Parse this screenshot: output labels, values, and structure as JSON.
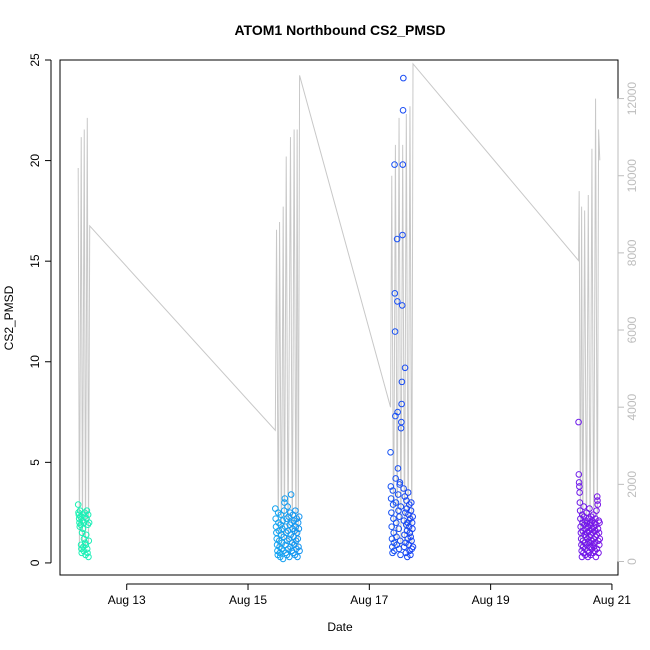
{
  "chart_data": {
    "type": "scatter",
    "title": "ATOM1 Northbound CS2_PMSD",
    "xlabel": "Date",
    "ylabel": "CS2_PMSD",
    "x_axis": {
      "ticks": [
        {
          "day": 13,
          "label": "Aug 13"
        },
        {
          "day": 15,
          "label": "Aug 15"
        },
        {
          "day": 17,
          "label": "Aug 17"
        },
        {
          "day": 19,
          "label": "Aug 19"
        },
        {
          "day": 21,
          "label": "Aug 21"
        }
      ],
      "range_days": [
        11.9,
        21.1
      ]
    },
    "y_axis_left": {
      "ticks": [
        0,
        5,
        10,
        15,
        20,
        25
      ],
      "ylim": [
        -0.6,
        25
      ]
    },
    "y_axis_right": {
      "ticks": [
        0,
        2000,
        4000,
        6000,
        8000,
        10000,
        12000
      ],
      "ylim": [
        -350,
        13000
      ],
      "color": "#bdbdbd"
    },
    "grid": false,
    "legend": "none",
    "series": [
      {
        "type": "scatter",
        "axis": "left",
        "marker": "open-circle",
        "color_gradient": [
          "#1df2b4",
          "#14b6f0",
          "#1a3cf5",
          "#7a16e8"
        ],
        "clusters": [
          {
            "x_start": 12.2,
            "x_end": 12.38,
            "points": [
              2.9,
              2.5,
              2.4,
              2.2,
              2.0,
              1.8,
              2.6,
              2.3,
              1.9,
              0.9,
              0.7,
              0.5,
              1.5,
              2.1,
              2.4,
              1.7,
              0.8,
              0.6,
              1.2,
              2.0,
              2.5,
              2.3,
              1.0,
              0.4,
              0.9,
              1.4,
              2.2,
              2.6,
              0.7,
              0.5,
              1.9,
              2.4,
              0.3,
              1.1,
              2.0
            ]
          },
          {
            "x_start": 15.45,
            "x_end": 15.85,
            "points": [
              2.7,
              2.2,
              1.8,
              1.5,
              1.2,
              0.9,
              0.6,
              0.4,
              2.5,
              2.0,
              1.6,
              1.1,
              0.8,
              0.5,
              0.3,
              1.9,
              2.4,
              1.4,
              0.7,
              1.0,
              1.7,
              2.1,
              0.2,
              0.6,
              1.3,
              2.6,
              3.0,
              3.2,
              1.8,
              0.9,
              0.5,
              1.5,
              2.2,
              0.4,
              1.1,
              2.8,
              1.6,
              0.7,
              2.3,
              1.2,
              0.3,
              1.9,
              2.5,
              0.8,
              1.4,
              3.4,
              2.0,
              0.6,
              1.0,
              1.7,
              2.4,
              0.5,
              1.3,
              2.1,
              0.9,
              1.6,
              0.4,
              2.6,
              1.8,
              1.1,
              0.7,
              2.2,
              1.5,
              0.3,
              1.2,
              2.0,
              0.8,
              1.7,
              2.3,
              0.6
            ]
          },
          {
            "x_start": 17.35,
            "x_end": 17.72,
            "points": [
              5.5,
              3.8,
              3.2,
              2.5,
              1.8,
              1.2,
              0.8,
              0.5,
              3.6,
              2.9,
              2.2,
              1.5,
              1.0,
              0.6,
              19.8,
              13.4,
              11.5,
              7.3,
              4.2,
              3.0,
              2.0,
              1.3,
              0.9,
              16.1,
              13.0,
              7.5,
              4.7,
              3.4,
              2.6,
              1.7,
              0.7,
              2.3,
              3.9,
              4.0,
              1.1,
              0.4,
              2.8,
              6.7,
              7.0,
              7.9,
              9.0,
              12.8,
              16.3,
              19.8,
              22.5,
              24.1,
              3.7,
              2.1,
              0.8,
              1.4,
              3.3,
              9.7,
              2.5,
              1.0,
              0.5,
              1.9,
              3.1,
              2.7,
              1.6,
              0.3,
              2.0,
              1.2,
              3.5,
              2.4,
              0.9,
              1.8,
              2.9,
              0.6,
              1.5,
              2.2,
              0.4,
              1.3,
              2.6,
              3.0,
              1.1,
              0.7,
              2.0,
              1.7,
              2.3,
              0.8
            ]
          },
          {
            "x_start": 20.45,
            "x_end": 20.8,
            "points": [
              7.0,
              4.4,
              4.0,
              3.8,
              3.5,
              3.0,
              2.6,
              2.2,
              1.8,
              1.5,
              1.2,
              0.9,
              0.6,
              0.3,
              2.4,
              2.0,
              1.6,
              1.1,
              0.8,
              0.5,
              2.8,
              2.3,
              1.9,
              1.4,
              1.0,
              0.7,
              0.4,
              2.1,
              1.7,
              1.3,
              0.9,
              2.5,
              2.0,
              1.5,
              1.2,
              0.6,
              0.3,
              1.8,
              2.2,
              1.0,
              0.5,
              1.6,
              2.7,
              1.3,
              0.8,
              2.0,
              1.4,
              0.4,
              1.9,
              2.3,
              1.1,
              0.7,
              1.7,
              2.1,
              0.9,
              1.5,
              0.5,
              2.4,
              1.2,
              0.8,
              1.8,
              2.0,
              1.0,
              0.6,
              1.6,
              2.2,
              1.3,
              0.3,
              1.9,
              2.6,
              1.4,
              0.7,
              3.3,
              3.1,
              2.9,
              1.7,
              1.1,
              0.5,
              2.1,
              1.5,
              0.9,
              2.0,
              1.2
            ]
          }
        ]
      },
      {
        "type": "line",
        "axis": "right",
        "color": "#c8c8c8",
        "points": [
          [
            12.2,
            10200
          ],
          [
            12.22,
            300
          ],
          [
            12.25,
            11000
          ],
          [
            12.27,
            400
          ],
          [
            12.3,
            11200
          ],
          [
            12.32,
            300
          ],
          [
            12.35,
            11500
          ],
          [
            12.37,
            400
          ],
          [
            12.39,
            8700
          ],
          [
            15.45,
            3400
          ],
          [
            15.47,
            8600
          ],
          [
            15.5,
            400
          ],
          [
            15.52,
            8800
          ],
          [
            15.55,
            300
          ],
          [
            15.58,
            9200
          ],
          [
            15.6,
            400
          ],
          [
            15.63,
            10500
          ],
          [
            15.66,
            300
          ],
          [
            15.7,
            11000
          ],
          [
            15.73,
            400
          ],
          [
            15.76,
            11200
          ],
          [
            15.79,
            300
          ],
          [
            15.81,
            11200
          ],
          [
            15.83,
            400
          ],
          [
            15.85,
            12600
          ],
          [
            17.35,
            4000
          ],
          [
            17.37,
            10000
          ],
          [
            17.4,
            300
          ],
          [
            17.43,
            10800
          ],
          [
            17.46,
            400
          ],
          [
            17.49,
            11500
          ],
          [
            17.52,
            300
          ],
          [
            17.55,
            10800
          ],
          [
            17.58,
            400
          ],
          [
            17.61,
            11600
          ],
          [
            17.64,
            300
          ],
          [
            17.67,
            11800
          ],
          [
            17.7,
            400
          ],
          [
            17.72,
            12900
          ],
          [
            20.45,
            7800
          ],
          [
            20.46,
            9600
          ],
          [
            20.48,
            300
          ],
          [
            20.5,
            9200
          ],
          [
            20.52,
            400
          ],
          [
            20.55,
            9100
          ],
          [
            20.58,
            300
          ],
          [
            20.61,
            9500
          ],
          [
            20.64,
            400
          ],
          [
            20.67,
            10700
          ],
          [
            20.7,
            300
          ],
          [
            20.73,
            12000
          ],
          [
            20.76,
            400
          ],
          [
            20.78,
            11200
          ],
          [
            20.8,
            10400
          ]
        ]
      }
    ]
  }
}
